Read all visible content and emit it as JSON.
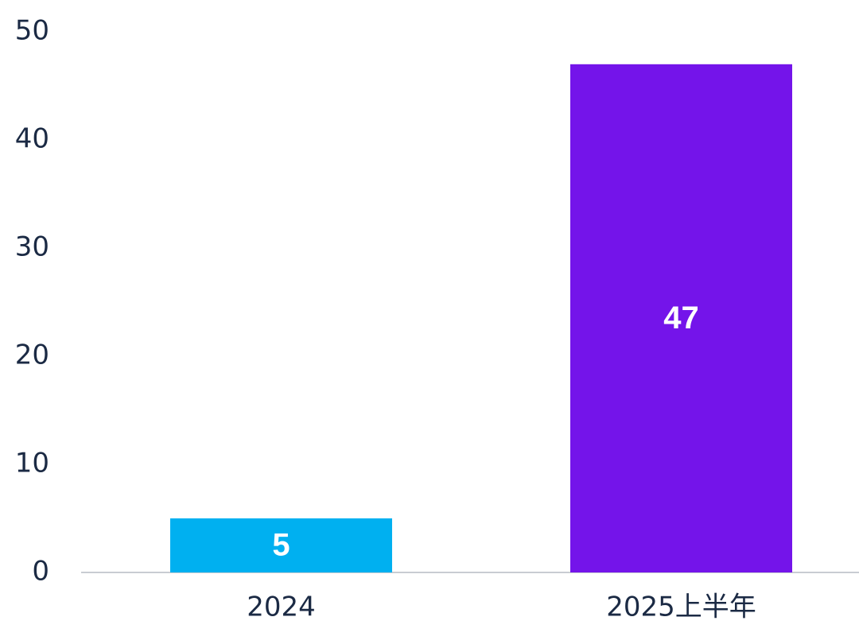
{
  "chart_data": {
    "type": "bar",
    "categories": [
      "2024",
      "2025上半年"
    ],
    "values": [
      5,
      47
    ],
    "colors": [
      "#00b0f0",
      "#7414ea"
    ],
    "ylim": [
      0,
      50
    ],
    "yticks": [
      0,
      10,
      20,
      30,
      40,
      50
    ],
    "grid": false
  }
}
